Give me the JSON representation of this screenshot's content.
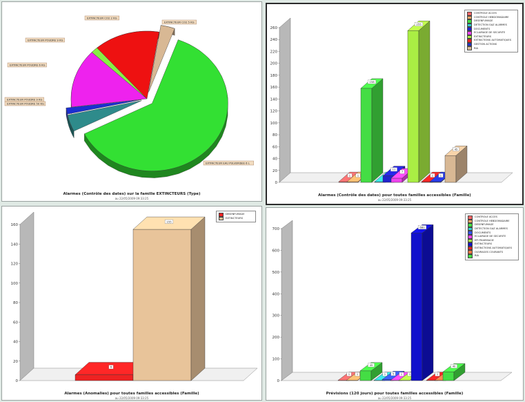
{
  "charts": {
    "pie": {
      "title": "Alarmes (Contrôle des dates) sur la famille EXTINCTEURS (Type)",
      "date": "au 22/05/2009 09:33:25",
      "chart_data": {
        "type": "pie",
        "slices": [
          {
            "label": "EXTINCTEUR EAU PULVERISEE 6 L",
            "value": 62,
            "color": "#33e033"
          },
          {
            "label": "EXTINCTEUR POUDRE 50 KG",
            "value": 4,
            "color": "#2e8b8b"
          },
          {
            "label": "EXTINCTEUR POUDRE 9 KG",
            "value": 1.5,
            "color": "#1b2fd0"
          },
          {
            "label": "EXTINCTEUR POUDRE 6 KG",
            "value": 14,
            "color": "#ee22ee"
          },
          {
            "label": "EXTINCTEUR POUDRE 9 KG",
            "value": 1.5,
            "color": "#88ee44"
          },
          {
            "label": "EXTINCTEUR CO2 2 KG",
            "value": 14,
            "color": "#ee1111"
          },
          {
            "label": "EXTINCTEUR CO2 5 KG",
            "value": 3,
            "color": "#d8b894"
          }
        ]
      }
    },
    "topRight": {
      "title": "Alarmes (Contrôle des dates) pour toutes familles accessibles (Famille)",
      "date": "au 22/05/2009 09:33:25",
      "legend": [
        "CONTROLE ACCES",
        "CONTROLE HEBDOMADAIRE",
        "DESENFUMAGE",
        "DETECTION GAZ ALARMES",
        "DOCUMENTS",
        "ECLAIRAGE DE SECURITE",
        "EXTINCTEURS",
        "EXTINCTIONS AUTOMATIQUES",
        "GESTION ACTIONS",
        "RIA"
      ],
      "chart_data": {
        "type": "bar",
        "categories": [
          "CONTROLE ACCES",
          "CONTROLE HEBDOMADAIRE",
          "DESENFUMAGE",
          "DETECTION GAZ ALARMES",
          "DOCUMENTS",
          "ECLAIRAGE DE SECURITE",
          "EXTINCTEURS",
          "EXTINCTIONS AUTOMATIQUES",
          "GESTION ACTIONS",
          "RIA"
        ],
        "values": [
          1,
          1,
          158,
          1,
          11,
          7,
          255,
          1,
          1,
          45
        ],
        "colors": [
          "#ff6666",
          "#ffaa66",
          "#44dd44",
          "#33cccc",
          "#2222cc",
          "#ee44ee",
          "#aaee44",
          "#ee2222",
          "#2233cc",
          "#d8b894"
        ],
        "ylim": [
          0,
          260
        ],
        "yticks": [
          0,
          20,
          40,
          60,
          80,
          100,
          120,
          140,
          160,
          180,
          200,
          220,
          240,
          260
        ]
      }
    },
    "bottomLeft": {
      "title": "Alarmes (Anomalies) pour toutes familles accessibles (Famille)",
      "date": "au 22/05/2009 09:33:25",
      "legend": [
        "DESENFUMAGE",
        "EXTINCTEURS"
      ],
      "chart_data": {
        "type": "bar",
        "categories": [
          "DESENFUMAGE",
          "EXTINCTEURS"
        ],
        "values": [
          6,
          155
        ],
        "colors": [
          "#ee2222",
          "#e8c49a"
        ],
        "ylim": [
          0,
          160
        ],
        "yticks": [
          0,
          20,
          40,
          60,
          80,
          100,
          120,
          140,
          160
        ]
      }
    },
    "bottomRight": {
      "title": "Prévisions (120 jours) pour toutes familles accessibles (Famille)",
      "date": "au 22/05/2009 09:33:25",
      "legend": [
        "CONTROLE ACCES",
        "CONTROLE HEBDOMADAIRE",
        "DESENFUMAGE",
        "DETECTION GAZ ALARMES",
        "DOCUMENTS",
        "ECLAIRAGE DE SECURITE",
        "EPI PHARMACIE",
        "EXTINCTEURS",
        "EXTINCTIONS AUTOMATIQUES",
        "OUVRAGES COURANTS",
        "RIA"
      ],
      "chart_data": {
        "type": "bar",
        "categories": [
          "CONTROLE ACCES",
          "CONTROLE HEBDOMADAIRE",
          "DESENFUMAGE",
          "DETECTION GAZ ALARMES",
          "DOCUMENTS",
          "ECLAIRAGE DE SECURITE",
          "EPI PHARMACIE",
          "EXTINCTEURS",
          "EXTINCTIONS AUTOMATIQUES",
          "OUVRAGES COURANTS",
          "RIA"
        ],
        "values": [
          1,
          1,
          45,
          1,
          5,
          1,
          1,
          680,
          1,
          1,
          40
        ],
        "colors": [
          "#ff6666",
          "#ffaa66",
          "#44dd44",
          "#33cccc",
          "#3355ee",
          "#ee44ee",
          "#aaee44",
          "#1111cc",
          "#ee2222",
          "#ee7744",
          "#44dd44"
        ],
        "ylim": [
          0,
          700
        ],
        "yticks": [
          0,
          100,
          200,
          300,
          400,
          500,
          600,
          700
        ]
      }
    }
  }
}
